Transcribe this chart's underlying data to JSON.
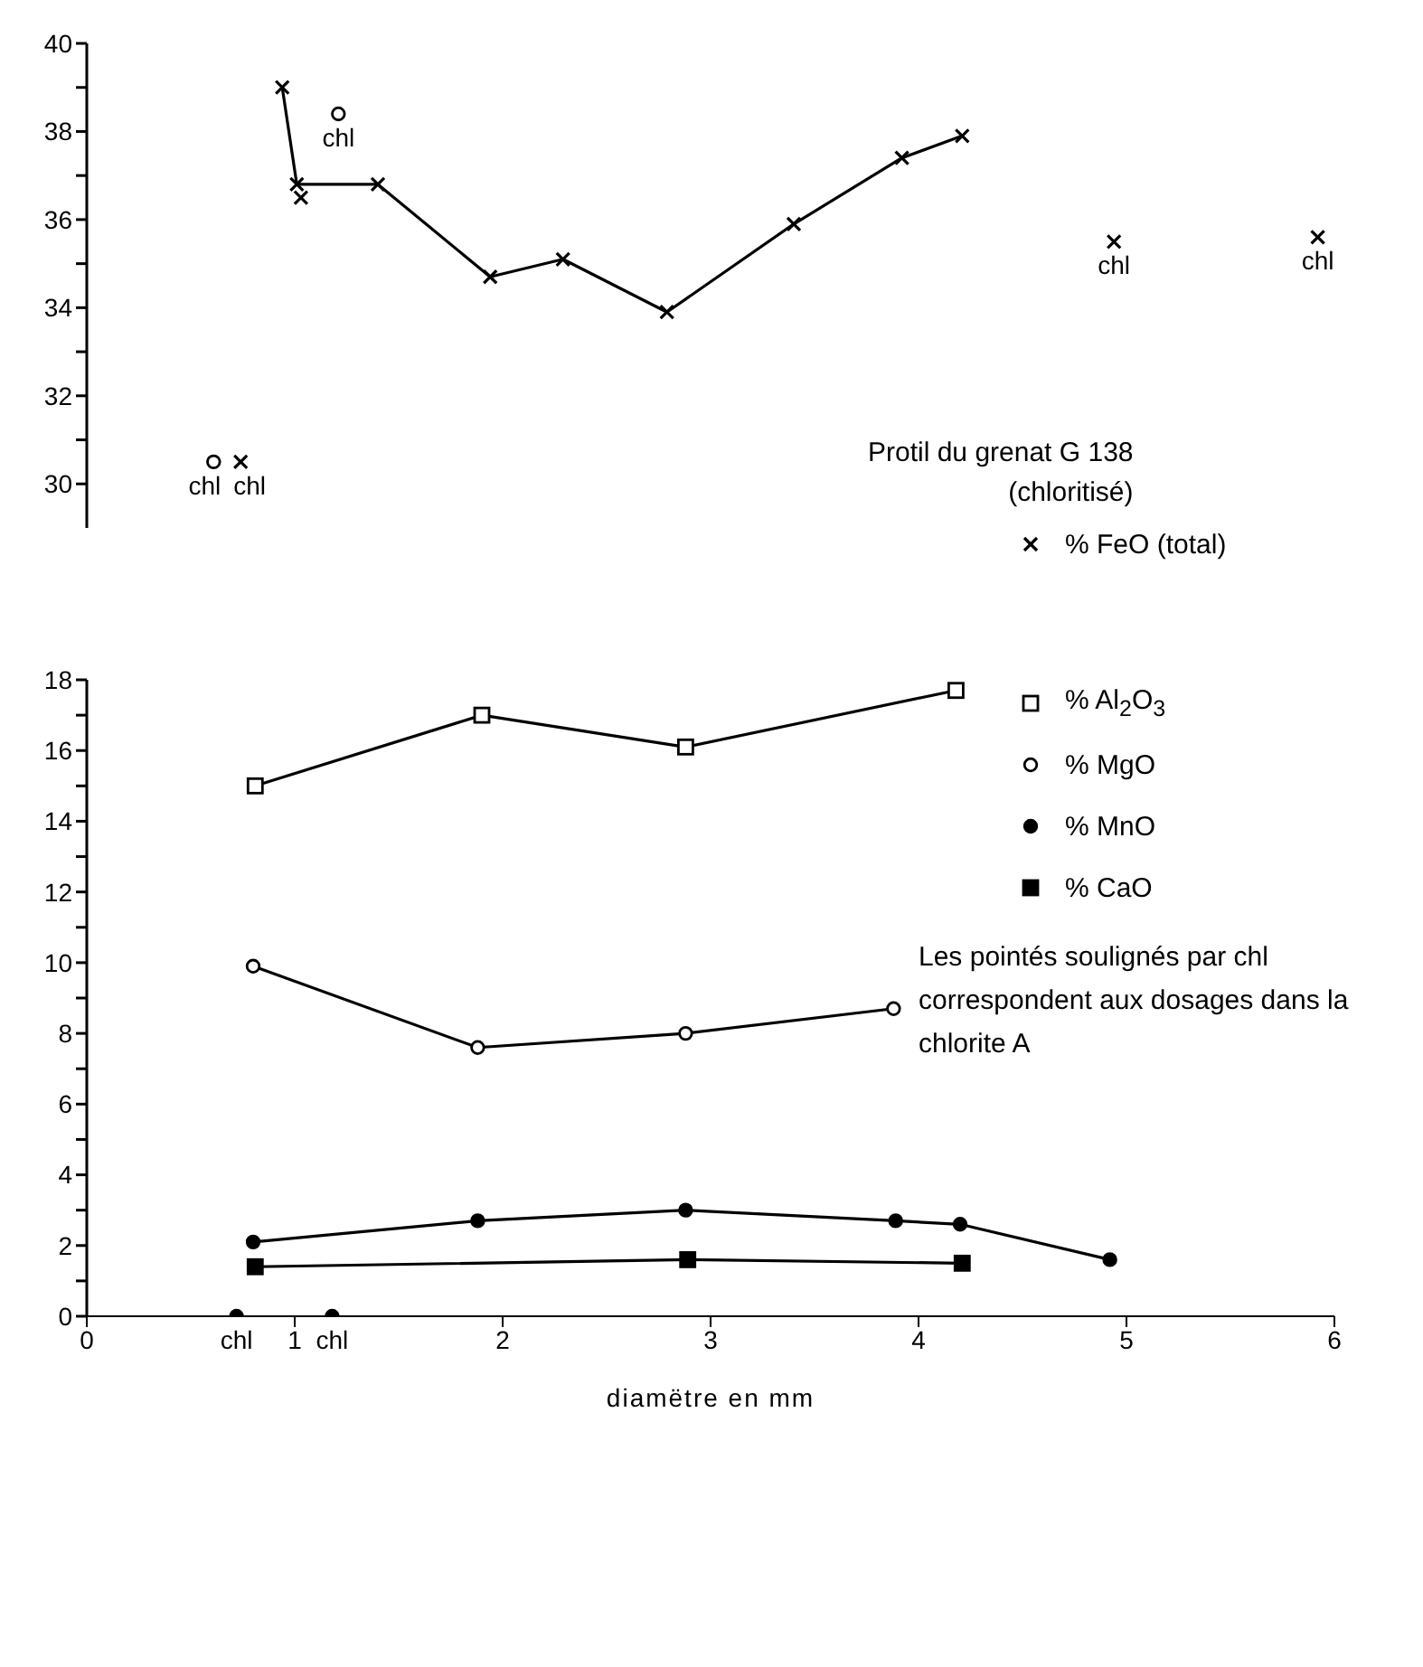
{
  "chart_data": [
    {
      "type": "line",
      "title": "Protil du grenat G 138\n(chloritisé)",
      "xlim": [
        0,
        6
      ],
      "ylim": [
        29,
        40
      ],
      "yticks": [
        30,
        {
          "value": 31,
          "label": null
        },
        32,
        {
          "value": 33,
          "label": null
        },
        34,
        {
          "value": 35,
          "label": null
        },
        36,
        {
          "value": 37,
          "label": null
        },
        38,
        {
          "value": 39,
          "label": null
        },
        40
      ],
      "tick_labels": "y",
      "legend": "bottom right",
      "series": [
        {
          "name": "% FeO (total)",
          "color": "#000000",
          "marker": "cross",
          "x": [
            0.94,
            1.01,
            1.4,
            1.94,
            2.29,
            2.79,
            3.4,
            3.92,
            4.21
          ],
          "values": [
            39.0,
            36.8,
            36.8,
            34.7,
            35.1,
            33.9,
            35.9,
            37.4,
            37.9
          ]
        },
        {
          "type": "scatter",
          "color": "#000000",
          "marker": "cross",
          "x": [
            1.03,
            0.74,
            4.94,
            5.92
          ],
          "values": [
            36.5,
            30.5,
            35.5,
            35.6
          ]
        },
        {
          "type": "scatter",
          "color": "#000000",
          "marker": "circle",
          "x": [
            0.61,
            1.21
          ],
          "values": [
            30.5,
            38.4
          ]
        }
      ],
      "annotations": [
        {
          "text": "chl",
          "x": 0.61,
          "y": 30.5
        },
        {
          "text": "chl",
          "x": 0.74,
          "y": 30.5
        },
        {
          "text": "chl",
          "x": 1.21,
          "y": 38.4
        },
        {
          "text": "chl",
          "x": 4.94,
          "y": 35.5
        },
        {
          "text": "chl",
          "x": 5.92,
          "y": 35.6
        }
      ]
    },
    {
      "type": "line",
      "xlabel": "diamëtre en mm",
      "xlim": [
        0,
        6
      ],
      "xticks": [
        0,
        1,
        2,
        3,
        4,
        5,
        6
      ],
      "ylim": [
        0,
        18
      ],
      "yticks": [
        0,
        {
          "value": 1,
          "label": null
        },
        2,
        {
          "value": 3,
          "label": null
        },
        4,
        {
          "value": 5,
          "label": null
        },
        6,
        {
          "value": 7,
          "label": null
        },
        8,
        {
          "value": 9,
          "label": null
        },
        10,
        {
          "value": 11,
          "label": null
        },
        12,
        {
          "value": 13,
          "label": null
        },
        14,
        {
          "value": 15,
          "label": null
        },
        16,
        {
          "value": 17,
          "label": null
        },
        18
      ],
      "legend": "top right",
      "series": [
        {
          "name": "% Al$_{2}$O$_{3}$",
          "color": "#000000",
          "marker": "square",
          "x": [
            0.81,
            1.9,
            2.88,
            4.18
          ],
          "values": [
            15.0,
            17.0,
            16.1,
            17.7
          ]
        },
        {
          "name": "% MgO",
          "color": "#000000",
          "marker": "circle",
          "x": [
            0.8,
            1.88,
            2.88,
            3.88
          ],
          "values": [
            9.9,
            7.6,
            8.0,
            8.7
          ]
        },
        {
          "name": "% MnO",
          "color": "#000000",
          "marker": "circle",
          "x": [
            0.8,
            1.88,
            2.88,
            3.89,
            4.2,
            4.92
          ],
          "values": [
            2.1,
            2.7,
            3.0,
            2.7,
            2.6,
            1.6
          ]
        },
        {
          "name": "% CaO",
          "color": "#000000",
          "marker": "square",
          "x": [
            0.81,
            2.89,
            4.21
          ],
          "values": [
            1.4,
            1.6,
            1.5
          ]
        },
        {
          "type": "scatter",
          "color": "#000000",
          "marker": "circle",
          "x": [
            0.72,
            1.18
          ],
          "values": [
            0,
            0
          ]
        }
      ],
      "annotations": [
        "Les pointés soulignés par chl correspondent aux dosages dans la chlorite A",
        {
          "text": "chl",
          "x": 0.72,
          "y": 0
        },
        {
          "text": "chl",
          "x": 1.18,
          "y": 0
        }
      ]
    }
  ]
}
